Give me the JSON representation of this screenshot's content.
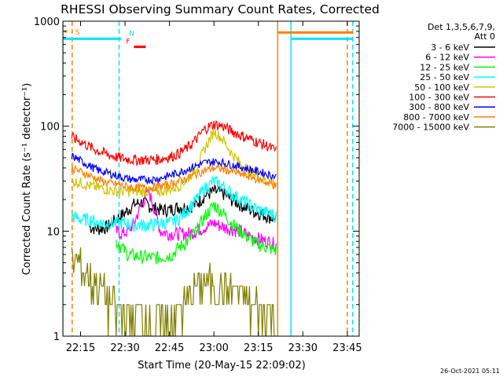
{
  "chart_data": {
    "type": "line",
    "title": "RHESSI Observing Summary Count Rates, Corrected",
    "xlabel": "Start Time (20-May-15 22:09:02)",
    "ylabel": "Corrected Count Rate (s⁻¹ detector⁻¹)",
    "y_scale": "log",
    "ylim": [
      1,
      1000
    ],
    "xlim": [
      "22:09:02",
      "23:49:00"
    ],
    "x_ticks": [
      "22:15",
      "22:30",
      "22:45",
      "23:00",
      "23:15",
      "23:30",
      "23:45"
    ],
    "y_ticks": [
      "1",
      "10",
      "100",
      "1000"
    ],
    "date_stamp": "26-Oct-2021 05:11",
    "legend": {
      "placement": "right",
      "header": [
        "Det 1,3,5,6,7,9,",
        "Att 0"
      ]
    },
    "flags": [
      {
        "label": "S",
        "color": "#ff8000",
        "start": "22:09:30",
        "end": "22:10:30",
        "level": 800
      },
      {
        "label": "N",
        "color": "#00e5ff",
        "start": "22:27:40",
        "end": "22:28:40",
        "level": 680
      },
      {
        "label": "F",
        "color": "#ff0000",
        "start": "22:33:00",
        "end": "22:37:00",
        "level": 570
      }
    ],
    "saa_intervals": [
      {
        "start": "23:21:30",
        "end": "23:47:00",
        "level": 780
      },
      {
        "start": "22:09:02",
        "end": "22:28:00",
        "level": 680
      },
      {
        "start": "23:26:00",
        "end": "23:47:00",
        "level": 680
      }
    ],
    "night_lines": [
      {
        "time": "22:09:02",
        "color": "#00e5ff",
        "style": "solid"
      },
      {
        "time": "22:12:10",
        "color": "#ff8000",
        "style": "dashed"
      },
      {
        "time": "22:28:00",
        "color": "#00e5ff",
        "style": "dashed"
      },
      {
        "time": "23:21:30",
        "color": "#ff8000",
        "style": "solid"
      },
      {
        "time": "23:26:00",
        "color": "#00e5ff",
        "style": "solid"
      },
      {
        "time": "23:45:00",
        "color": "#ff8000",
        "style": "dashed"
      },
      {
        "time": "23:46:50",
        "color": "#00e5ff",
        "style": "dashed"
      }
    ],
    "series": [
      {
        "name": "3 - 6 keV",
        "color": "#000000",
        "noise": 0.05,
        "points": [
          [
            "22:18",
            11
          ],
          [
            "22:21",
            10.5
          ],
          [
            "22:24",
            11
          ],
          [
            "22:27",
            13
          ],
          [
            "22:30",
            15
          ],
          [
            "22:33",
            18
          ],
          [
            "22:36",
            19
          ],
          [
            "22:39",
            17
          ],
          [
            "22:42",
            16
          ],
          [
            "22:45",
            16
          ],
          [
            "22:48",
            17
          ],
          [
            "22:51",
            17
          ],
          [
            "22:54",
            18
          ],
          [
            "22:57",
            22
          ],
          [
            "23:00",
            24
          ],
          [
            "23:03",
            23
          ],
          [
            "23:06",
            20
          ],
          [
            "23:09",
            18
          ],
          [
            "23:12",
            16
          ],
          [
            "23:15",
            15
          ],
          [
            "23:18",
            14
          ],
          [
            "23:21",
            13
          ]
        ]
      },
      {
        "name": "6 - 12 keV",
        "color": "#ff00ff",
        "noise": 0.05,
        "points": [
          [
            "22:27",
            10
          ],
          [
            "22:29",
            9.5
          ],
          [
            "22:31",
            10
          ],
          [
            "22:33",
            12
          ],
          [
            "22:36",
            19
          ],
          [
            "22:38",
            24
          ],
          [
            "22:40",
            16
          ],
          [
            "22:42",
            10
          ],
          [
            "22:45",
            9.5
          ],
          [
            "22:48",
            9.5
          ],
          [
            "22:51",
            9.5
          ],
          [
            "22:54",
            10
          ],
          [
            "22:57",
            11
          ],
          [
            "23:00",
            12
          ],
          [
            "23:03",
            11
          ],
          [
            "23:06",
            10.5
          ],
          [
            "23:09",
            10
          ],
          [
            "23:12",
            9
          ],
          [
            "23:15",
            8.5
          ],
          [
            "23:18",
            8
          ],
          [
            "23:21",
            7.5
          ]
        ]
      },
      {
        "name": "12 - 25 keV",
        "color": "#00ff00",
        "noise": 0.05,
        "points": [
          [
            "22:27",
            8
          ],
          [
            "22:29",
            7
          ],
          [
            "22:31",
            6
          ],
          [
            "22:34",
            5.8
          ],
          [
            "22:37",
            5.7
          ],
          [
            "22:40",
            5.6
          ],
          [
            "22:43",
            5.7
          ],
          [
            "22:46",
            6
          ],
          [
            "22:48",
            7
          ],
          [
            "22:51",
            8
          ],
          [
            "22:54",
            10
          ],
          [
            "22:57",
            14
          ],
          [
            "23:00",
            18
          ],
          [
            "23:03",
            15
          ],
          [
            "23:06",
            12
          ],
          [
            "23:09",
            10
          ],
          [
            "23:12",
            8.5
          ],
          [
            "23:15",
            7.5
          ],
          [
            "23:18",
            7
          ],
          [
            "23:21",
            6.5
          ]
        ]
      },
      {
        "name": "25 - 50 keV",
        "color": "#00ffff",
        "noise": 0.05,
        "points": [
          [
            "22:12",
            14
          ],
          [
            "22:15",
            13
          ],
          [
            "22:18",
            13
          ],
          [
            "22:21",
            12
          ],
          [
            "22:24",
            12
          ],
          [
            "22:27",
            12
          ],
          [
            "22:30",
            12
          ],
          [
            "22:33",
            11.5
          ],
          [
            "22:36",
            11.5
          ],
          [
            "22:39",
            11.5
          ],
          [
            "22:42",
            12
          ],
          [
            "22:45",
            12
          ],
          [
            "22:48",
            13
          ],
          [
            "22:51",
            16
          ],
          [
            "22:54",
            20
          ],
          [
            "22:57",
            26
          ],
          [
            "23:00",
            30
          ],
          [
            "23:03",
            27
          ],
          [
            "23:06",
            23
          ],
          [
            "23:09",
            20
          ],
          [
            "23:12",
            18
          ],
          [
            "23:15",
            16
          ],
          [
            "23:18",
            15
          ],
          [
            "23:21",
            14
          ]
        ]
      },
      {
        "name": "50 - 100 keV",
        "color": "#d4c400",
        "noise": 0.04,
        "points": [
          [
            "22:12",
            30
          ],
          [
            "22:15",
            29
          ],
          [
            "22:18",
            27
          ],
          [
            "22:21",
            26
          ],
          [
            "22:24",
            25
          ],
          [
            "22:27",
            24
          ],
          [
            "22:30",
            24
          ],
          [
            "22:33",
            24
          ],
          [
            "22:36",
            24
          ],
          [
            "22:39",
            24
          ],
          [
            "22:42",
            24
          ],
          [
            "22:45",
            25
          ],
          [
            "22:48",
            27
          ],
          [
            "22:51",
            31
          ],
          [
            "22:54",
            40
          ],
          [
            "22:57",
            62
          ],
          [
            "23:00",
            90
          ],
          [
            "23:03",
            75
          ],
          [
            "23:06",
            55
          ],
          [
            "23:09",
            44
          ],
          [
            "23:12",
            38
          ],
          [
            "23:15",
            33
          ],
          [
            "23:18",
            30
          ],
          [
            "23:21",
            28
          ]
        ]
      },
      {
        "name": "100 - 300 keV",
        "color": "#ff0000",
        "noise": 0.04,
        "points": [
          [
            "22:12",
            78
          ],
          [
            "22:15",
            72
          ],
          [
            "22:18",
            64
          ],
          [
            "22:21",
            58
          ],
          [
            "22:24",
            54
          ],
          [
            "22:27",
            51
          ],
          [
            "22:30",
            49
          ],
          [
            "22:33",
            48
          ],
          [
            "22:36",
            48
          ],
          [
            "22:39",
            48
          ],
          [
            "22:42",
            49
          ],
          [
            "22:45",
            51
          ],
          [
            "22:48",
            55
          ],
          [
            "22:51",
            62
          ],
          [
            "22:54",
            75
          ],
          [
            "22:57",
            95
          ],
          [
            "23:00",
            105
          ],
          [
            "23:03",
            100
          ],
          [
            "23:06",
            90
          ],
          [
            "23:09",
            82
          ],
          [
            "23:12",
            76
          ],
          [
            "23:15",
            70
          ],
          [
            "23:18",
            65
          ],
          [
            "23:21",
            58
          ]
        ]
      },
      {
        "name": "300 - 800 keV",
        "color": "#0000ff",
        "noise": 0.03,
        "points": [
          [
            "22:12",
            52
          ],
          [
            "22:15",
            47
          ],
          [
            "22:18",
            42
          ],
          [
            "22:21",
            38
          ],
          [
            "22:24",
            36
          ],
          [
            "22:27",
            34
          ],
          [
            "22:30",
            32
          ],
          [
            "22:33",
            31
          ],
          [
            "22:36",
            31
          ],
          [
            "22:39",
            31
          ],
          [
            "22:42",
            32
          ],
          [
            "22:45",
            34
          ],
          [
            "22:48",
            36
          ],
          [
            "22:51",
            39
          ],
          [
            "22:54",
            42
          ],
          [
            "22:57",
            45
          ],
          [
            "23:00",
            46
          ],
          [
            "23:03",
            45
          ],
          [
            "23:06",
            43
          ],
          [
            "23:09",
            41
          ],
          [
            "23:12",
            39
          ],
          [
            "23:15",
            37
          ],
          [
            "23:18",
            35
          ],
          [
            "23:21",
            33
          ]
        ]
      },
      {
        "name": "800 - 7000 keV",
        "color": "#ff8000",
        "noise": 0.03,
        "points": [
          [
            "22:12",
            40
          ],
          [
            "22:15",
            37
          ],
          [
            "22:18",
            34
          ],
          [
            "22:21",
            31
          ],
          [
            "22:24",
            29
          ],
          [
            "22:27",
            28
          ],
          [
            "22:30",
            27
          ],
          [
            "22:33",
            26
          ],
          [
            "22:36",
            26
          ],
          [
            "22:39",
            26
          ],
          [
            "22:42",
            27
          ],
          [
            "22:45",
            28
          ],
          [
            "22:48",
            30
          ],
          [
            "22:51",
            32
          ],
          [
            "22:54",
            35
          ],
          [
            "22:57",
            38
          ],
          [
            "23:00",
            40
          ],
          [
            "23:03",
            39
          ],
          [
            "23:06",
            37
          ],
          [
            "23:09",
            35
          ],
          [
            "23:12",
            33
          ],
          [
            "23:15",
            31
          ],
          [
            "23:18",
            29
          ],
          [
            "23:21",
            27
          ]
        ]
      },
      {
        "name": "7000 - 15000 keV",
        "color": "#808000",
        "noise": 0.0,
        "points": [
          [
            "22:12",
            5
          ],
          [
            "22:15",
            4.5
          ],
          [
            "22:18",
            3.5
          ],
          [
            "22:21",
            3
          ],
          [
            "22:24",
            2.2
          ],
          [
            "22:27",
            1.6
          ],
          [
            "22:30",
            1.5
          ],
          [
            "22:33",
            1.6
          ],
          [
            "22:36",
            1.4
          ],
          [
            "22:39",
            1.5
          ],
          [
            "22:42",
            1.3
          ],
          [
            "22:45",
            1.4
          ],
          [
            "22:48",
            1.6
          ],
          [
            "22:51",
            2.2
          ],
          [
            "22:54",
            2.8
          ],
          [
            "22:57",
            3.2
          ],
          [
            "23:00",
            3
          ],
          [
            "23:03",
            2.8
          ],
          [
            "23:06",
            2.6
          ],
          [
            "23:09",
            2.4
          ],
          [
            "23:12",
            2
          ],
          [
            "23:15",
            1.8
          ],
          [
            "23:18",
            1.6
          ],
          [
            "23:21",
            1.5
          ]
        ]
      }
    ]
  }
}
